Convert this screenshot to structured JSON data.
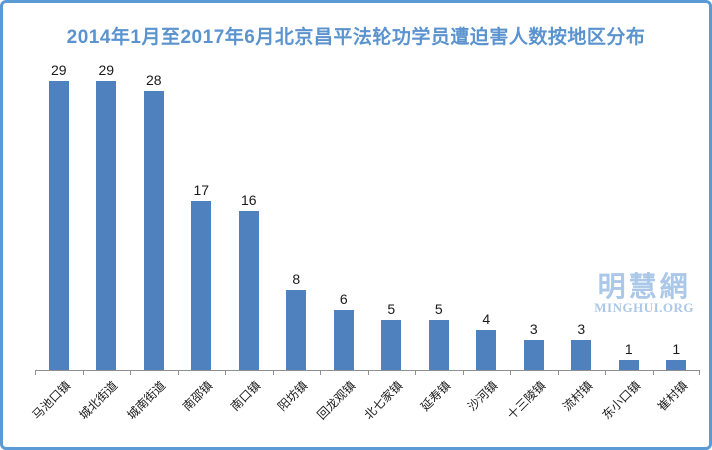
{
  "title": "2014年1月至2017年6月北京昌平法轮功学员遭迫害人数按地区分布",
  "watermark": {
    "cjk": "明慧網",
    "latin": "MINGHUI.ORG"
  },
  "colors": {
    "bar": "#4e81bd",
    "title": "#5b93cf",
    "frame_border": "#5b9bd5",
    "axis": "#8f8f8f",
    "data_label": "#1a1a1a",
    "watermark": "#abc8e8"
  },
  "chart_data": {
    "type": "bar",
    "title": "2014年1月至2017年6月北京昌平法轮功学员遭迫害人数按地区分布",
    "categories": [
      "马池口镇",
      "城北街道",
      "城南街道",
      "南邵镇",
      "南口镇",
      "阳坊镇",
      "回龙观镇",
      "北七家镇",
      "延寿镇",
      "沙河镇",
      "十三陵镇",
      "流村镇",
      "东小口镇",
      "崔村镇"
    ],
    "values": [
      29,
      29,
      28,
      17,
      16,
      8,
      6,
      5,
      5,
      4,
      3,
      3,
      1,
      1
    ],
    "xlabel": "",
    "ylabel": "",
    "ylim": [
      0,
      30
    ],
    "grid": false,
    "legend": false,
    "data_labels": true,
    "x_label_rotation_deg": 45,
    "bar_color": "#4e81bd"
  }
}
